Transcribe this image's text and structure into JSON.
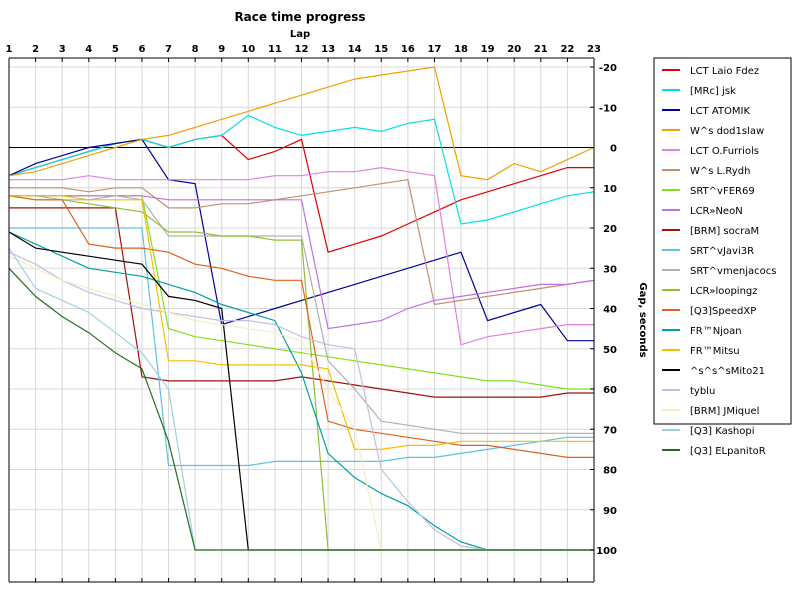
{
  "chart_data": {
    "type": "line",
    "title": "Race time progress",
    "xlabel": "Lap",
    "ylabel": "Gap, seconds",
    "xlim": [
      1,
      23
    ],
    "ylim": [
      -20,
      100
    ],
    "y_reversed": true,
    "x_ticks": [
      1,
      2,
      3,
      4,
      5,
      6,
      7,
      8,
      9,
      10,
      11,
      12,
      13,
      14,
      15,
      16,
      17,
      18,
      19,
      20,
      21,
      22,
      23
    ],
    "y_ticks": [
      -20,
      -10,
      0,
      10,
      20,
      30,
      40,
      50,
      60,
      70,
      80,
      90,
      100
    ],
    "grid": true,
    "legend_position": "right",
    "series": [
      {
        "name": "LCT Laio Fdez",
        "color": "#e00000",
        "x": [
          1,
          2,
          3,
          4,
          5,
          6,
          7,
          8,
          9,
          10,
          11,
          12,
          13,
          14,
          15,
          16,
          17,
          18,
          19,
          20,
          21,
          22,
          23
        ],
        "values": [
          7,
          5,
          3,
          1,
          -1,
          -2,
          0,
          -2,
          -3,
          3,
          1,
          -2,
          26,
          24,
          22,
          19,
          16,
          13,
          11,
          9,
          7,
          5,
          5
        ]
      },
      {
        "name": "[MRc] jsk",
        "color": "#00e0e0",
        "x": [
          1,
          2,
          3,
          4,
          5,
          6,
          7,
          8,
          9,
          10,
          11,
          12,
          13,
          14,
          15,
          16,
          17,
          18,
          19,
          20,
          21,
          22,
          23
        ],
        "values": [
          7,
          5,
          3,
          1,
          -1,
          -2,
          0,
          -2,
          -3,
          -8,
          -5,
          -3,
          -4,
          -5,
          -4,
          -6,
          -7,
          19,
          18,
          16,
          14,
          12,
          11
        ]
      },
      {
        "name": "LCT ATOMIK",
        "color": "#0000a0",
        "x": [
          1,
          2,
          3,
          4,
          5,
          6,
          7,
          8,
          9,
          10,
          11,
          12,
          13,
          14,
          15,
          16,
          17,
          18,
          19,
          20,
          21,
          22,
          23
        ],
        "values": [
          7,
          4,
          2,
          0,
          -1,
          -2,
          8,
          9,
          44,
          42,
          40,
          38,
          36,
          34,
          32,
          30,
          28,
          26,
          43,
          41,
          39,
          48,
          48
        ]
      },
      {
        "name": "W^s dod1slaw",
        "color": "#f0a000",
        "x": [
          1,
          2,
          3,
          4,
          5,
          6,
          7,
          8,
          9,
          10,
          11,
          12,
          13,
          14,
          15,
          16,
          17,
          18,
          19,
          20,
          21,
          22,
          23
        ],
        "values": [
          7,
          6,
          4,
          2,
          0,
          -2,
          -3,
          -5,
          -7,
          -9,
          -11,
          -13,
          -15,
          -17,
          -18,
          -19,
          -20,
          7,
          8,
          4,
          6,
          3,
          0
        ]
      },
      {
        "name": "LCT O.Furriols",
        "color": "#e080e0",
        "x": [
          1,
          2,
          3,
          4,
          5,
          6,
          7,
          8,
          9,
          10,
          11,
          12,
          13,
          14,
          15,
          16,
          17,
          18,
          19,
          20,
          21,
          22,
          23
        ],
        "values": [
          8,
          8,
          8,
          7,
          8,
          8,
          8,
          8,
          8,
          8,
          7,
          7,
          6,
          6,
          5,
          6,
          7,
          49,
          47,
          46,
          45,
          44,
          44
        ]
      },
      {
        "name": "W^s L.Rydh",
        "color": "#c09070",
        "x": [
          1,
          2,
          3,
          4,
          5,
          6,
          7,
          8,
          9,
          10,
          11,
          12,
          13,
          14,
          15,
          16,
          17,
          18,
          19,
          20,
          21,
          22,
          23
        ],
        "values": [
          10,
          10,
          10,
          11,
          10,
          10,
          15,
          15,
          14,
          14,
          13,
          12,
          11,
          10,
          9,
          8,
          39,
          38,
          37,
          36,
          35,
          34,
          33
        ]
      },
      {
        "name": "SRT^vFER69",
        "color": "#80e020",
        "x": [
          1,
          2,
          3,
          4,
          5,
          6,
          7,
          8,
          9,
          10,
          11,
          12,
          13,
          14,
          15,
          16,
          17,
          18,
          19,
          20,
          21,
          22,
          23
        ],
        "values": [
          12,
          12,
          12,
          12,
          12,
          12,
          45,
          47,
          48,
          49,
          50,
          51,
          52,
          53,
          54,
          55,
          56,
          57,
          58,
          58,
          59,
          60,
          60
        ]
      },
      {
        "name": "LCR»NeoN",
        "color": "#c070e0",
        "x": [
          1,
          2,
          3,
          4,
          5,
          6,
          7,
          8,
          9,
          10,
          11,
          12,
          13,
          14,
          15,
          16,
          17,
          18,
          19,
          20,
          21,
          22,
          23
        ],
        "values": [
          12,
          12,
          12,
          12,
          12,
          12,
          13,
          13,
          13,
          13,
          13,
          13,
          45,
          44,
          43,
          40,
          38,
          37,
          36,
          35,
          34,
          34,
          33
        ]
      },
      {
        "name": "[BRM] socraM",
        "color": "#a01010",
        "x": [
          1,
          2,
          3,
          4,
          5,
          6,
          7,
          8,
          9,
          10,
          11,
          12,
          13,
          14,
          15,
          16,
          17,
          18,
          19,
          20,
          21,
          22,
          23
        ],
        "values": [
          15,
          15,
          15,
          15,
          15,
          57,
          58,
          58,
          58,
          58,
          58,
          57,
          58,
          59,
          60,
          61,
          62,
          62,
          62,
          62,
          62,
          61,
          61
        ]
      },
      {
        "name": "SRT^vJavi3R",
        "color": "#60c0e0",
        "x": [
          1,
          2,
          3,
          4,
          5,
          6,
          7,
          8,
          9,
          10,
          11,
          12,
          13,
          14,
          15,
          16,
          17,
          18,
          19,
          20,
          21,
          22,
          23
        ],
        "values": [
          20,
          20,
          20,
          20,
          20,
          20,
          79,
          79,
          79,
          79,
          78,
          78,
          78,
          78,
          78,
          77,
          77,
          76,
          75,
          74,
          73,
          72,
          72
        ]
      },
      {
        "name": "SRT^vmenjacocs",
        "color": "#b0b0b0",
        "x": [
          1,
          2,
          3,
          4,
          5,
          6,
          7,
          8,
          9,
          10,
          11,
          12,
          13,
          14,
          15,
          16,
          17,
          18,
          19,
          20,
          21,
          22,
          23
        ],
        "values": [
          12,
          12,
          13,
          13,
          12,
          13,
          22,
          22,
          22,
          22,
          22,
          22,
          53,
          60,
          68,
          69,
          70,
          71,
          71,
          71,
          71,
          71,
          71
        ]
      },
      {
        "name": "LCR»loopingz",
        "color": "#90c030",
        "x": [
          1,
          2,
          3,
          4,
          5,
          6,
          7,
          8,
          9,
          10,
          11,
          12,
          13,
          14,
          15,
          16,
          17,
          18,
          19,
          20,
          21,
          22,
          23
        ],
        "values": [
          12,
          13,
          13,
          14,
          15,
          16,
          21,
          21,
          22,
          22,
          23,
          23,
          100,
          100,
          100,
          100,
          100,
          100,
          100,
          100,
          100,
          100,
          100
        ]
      },
      {
        "name": "[Q3]SpeedXP",
        "color": "#e06020",
        "x": [
          1,
          2,
          3,
          4,
          5,
          6,
          7,
          8,
          9,
          10,
          11,
          12,
          13,
          14,
          15,
          16,
          17,
          18,
          19,
          20,
          21,
          22,
          23
        ],
        "values": [
          12,
          13,
          13,
          24,
          25,
          25,
          26,
          29,
          30,
          32,
          33,
          33,
          68,
          70,
          71,
          72,
          73,
          74,
          74,
          75,
          76,
          77,
          77
        ]
      },
      {
        "name": "FR™Njoan",
        "color": "#00a0a0",
        "x": [
          1,
          2,
          3,
          4,
          5,
          6,
          7,
          8,
          9,
          10,
          11,
          12,
          13,
          14,
          15,
          16,
          17,
          18,
          19,
          20,
          21,
          22,
          23
        ],
        "values": [
          21,
          24,
          27,
          30,
          31,
          32,
          34,
          36,
          39,
          41,
          43,
          56,
          76,
          82,
          86,
          89,
          94,
          98,
          100,
          100,
          100,
          100,
          100
        ]
      },
      {
        "name": "FR™Mitsu",
        "color": "#f0c000",
        "x": [
          1,
          2,
          3,
          4,
          5,
          6,
          7,
          8,
          9,
          10,
          11,
          12,
          13,
          14,
          15,
          16,
          17,
          18,
          19,
          20,
          21,
          22,
          23
        ],
        "values": [
          12,
          12,
          12,
          13,
          13,
          13,
          53,
          53,
          54,
          54,
          54,
          54,
          55,
          75,
          75,
          74,
          74,
          73,
          73,
          73,
          73,
          73,
          73
        ]
      },
      {
        "name": "^s^s^sMito21",
        "color": "#000000",
        "x": [
          1,
          2,
          3,
          4,
          5,
          6,
          7,
          8,
          9,
          10,
          11,
          12,
          13,
          14,
          15,
          16,
          17,
          18,
          19,
          20,
          21,
          22,
          23
        ],
        "values": [
          21,
          25,
          26,
          27,
          28,
          29,
          37,
          38,
          40,
          100,
          100,
          100,
          100,
          100,
          100,
          100,
          100,
          100,
          100,
          100,
          100,
          100,
          100
        ]
      },
      {
        "name": "tyblu",
        "color": "#c0c0e0",
        "x": [
          1,
          2,
          3,
          4,
          5,
          6,
          7,
          8,
          9,
          10,
          11,
          12,
          13,
          14,
          15,
          16,
          17,
          18,
          19,
          20,
          21,
          22,
          23
        ],
        "values": [
          26,
          29,
          33,
          36,
          38,
          40,
          41,
          42,
          43,
          43,
          44,
          47,
          49,
          50,
          80,
          88,
          95,
          99,
          100,
          100,
          100,
          100,
          100
        ]
      },
      {
        "name": "[BRM] JMiquel",
        "color": "#f0f0c0",
        "x": [
          1,
          2,
          3,
          4,
          5,
          6,
          7,
          8,
          9,
          10,
          11,
          12,
          13,
          14,
          15,
          16,
          17,
          18,
          19,
          20,
          21,
          22,
          23
        ],
        "values": [
          27,
          30,
          33,
          35,
          37,
          39,
          41,
          43,
          44,
          45,
          46,
          48,
          60,
          70,
          100,
          100,
          100,
          100,
          100,
          100,
          100,
          100,
          100
        ]
      },
      {
        "name": "[Q3] Kashopi",
        "color": "#a0d0e0",
        "x": [
          1,
          2,
          3,
          4,
          5,
          6,
          7,
          8,
          9,
          10,
          11,
          12,
          13,
          14,
          15,
          16,
          17,
          18,
          19,
          20,
          21,
          22,
          23
        ],
        "values": [
          25,
          35,
          38,
          41,
          46,
          51,
          60,
          100,
          100,
          100,
          100,
          100,
          100,
          100,
          100,
          100,
          100,
          100,
          100,
          100,
          100,
          100,
          100
        ]
      },
      {
        "name": "[Q3] ELpanitoR",
        "color": "#207020",
        "x": [
          1,
          2,
          3,
          4,
          5,
          6,
          7,
          8,
          9,
          10,
          11,
          12,
          13,
          14,
          15,
          16,
          17,
          18,
          19,
          20,
          21,
          22,
          23
        ],
        "values": [
          30,
          37,
          42,
          46,
          51,
          55,
          73,
          100,
          100,
          100,
          100,
          100,
          100,
          100,
          100,
          100,
          100,
          100,
          100,
          100,
          100,
          100,
          100
        ]
      }
    ]
  }
}
